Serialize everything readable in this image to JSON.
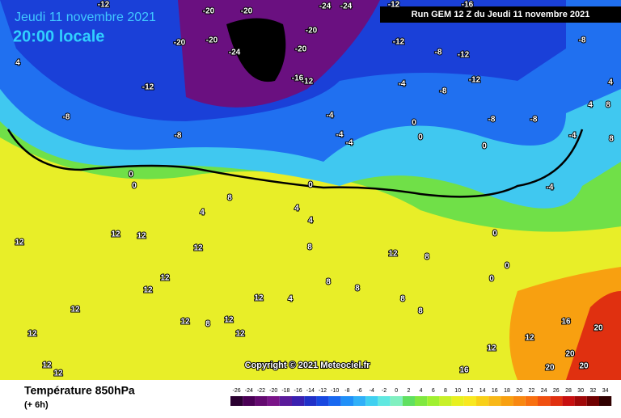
{
  "header": {
    "date": "Jeudi 11 novembre 2021",
    "time": "20:00 locale",
    "run": "Run GEM 12 Z du Jeudi 11 novembre 2021"
  },
  "footer": {
    "title": "Température 850hPa",
    "subtitle": "(+ 6h)",
    "copyright": "Copyright © 2021 Meteociel.fr"
  },
  "legend": {
    "values": [
      -26,
      -24,
      -22,
      -20,
      -18,
      -16,
      -14,
      -12,
      -10,
      -8,
      -6,
      -4,
      -2,
      0,
      2,
      4,
      6,
      8,
      10,
      12,
      14,
      16,
      18,
      20,
      22,
      24,
      26,
      28,
      30,
      32,
      34
    ],
    "colors": [
      "#2a0030",
      "#4a0055",
      "#640a70",
      "#7a1488",
      "#5a1a9a",
      "#3a20b0",
      "#2030c8",
      "#1848e0",
      "#1868f0",
      "#2090f8",
      "#30b0f8",
      "#40d0f0",
      "#60e8e0",
      "#80f0c0",
      "#60e060",
      "#80e840",
      "#a0f030",
      "#c8f028",
      "#e8f020",
      "#f8e820",
      "#f8d018",
      "#f8b818",
      "#f8a010",
      "#f88810",
      "#f87010",
      "#f05010",
      "#e03010",
      "#c81010",
      "#a00808",
      "#700000",
      "#300000"
    ]
  },
  "map_labels": [
    "-12",
    "-20",
    "-20",
    "-24",
    "-24",
    "-12",
    "-16",
    "-20",
    "-20",
    "-24",
    "-20",
    "-20",
    "-16",
    "-12",
    "-12",
    "-12",
    "-8",
    "-12",
    "-12",
    "-8",
    "-4",
    "-8",
    "-8",
    "-8",
    "-8",
    "-8",
    "-4",
    "-4",
    "-4",
    "0",
    "0",
    "0",
    "4",
    "4",
    "4",
    "8",
    "8",
    "-4",
    "0",
    "0",
    "0",
    "-4",
    "0",
    "0",
    "0",
    "8",
    "4",
    "4",
    "4",
    "8",
    "12",
    "12",
    "12",
    "12",
    "12",
    "12",
    "12",
    "12",
    "12",
    "12",
    "12",
    "12",
    "12",
    "12",
    "12",
    "8",
    "8",
    "8",
    "4",
    "8",
    "8",
    "12",
    "16",
    "16",
    "20",
    "20",
    "20",
    "20",
    "12",
    "8"
  ]
}
